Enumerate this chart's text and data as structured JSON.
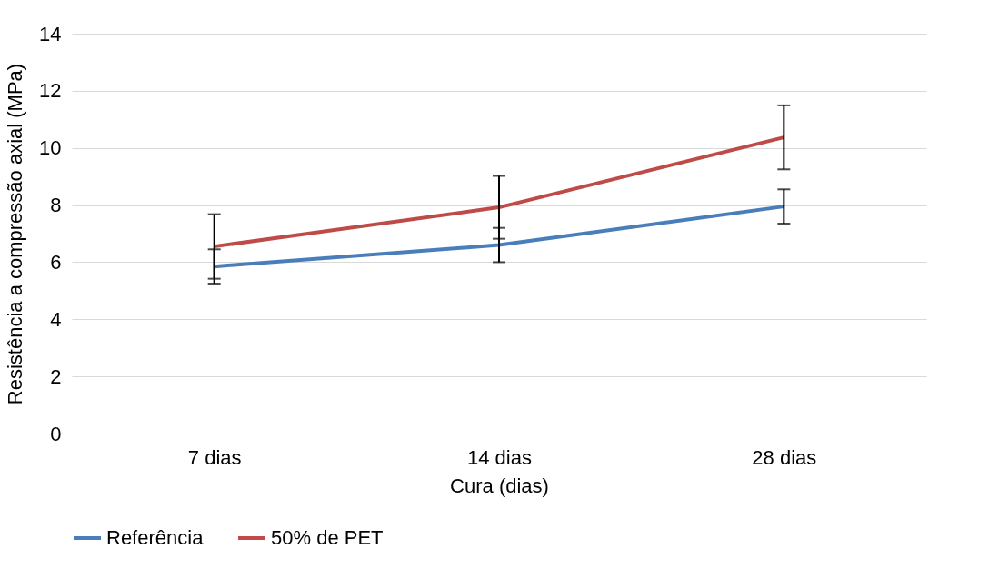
{
  "chart_data": {
    "type": "line",
    "xlabel": "Cura (dias)",
    "ylabel": "Resistência a compressão axial (MPa)",
    "categories": [
      "7 dias",
      "14 dias",
      "28 dias"
    ],
    "series": [
      {
        "name": "Referência",
        "color": "#4a7ebb",
        "values": [
          5.85,
          6.6,
          7.95
        ],
        "errors": [
          0.6,
          0.6,
          0.6
        ]
      },
      {
        "name": "50% de PET",
        "color": "#be4b48",
        "values": [
          6.55,
          7.92,
          10.37
        ],
        "errors": [
          1.13,
          1.1,
          1.12
        ]
      }
    ],
    "ylim": [
      0,
      14
    ],
    "yticks": [
      0,
      2,
      4,
      6,
      8,
      10,
      12,
      14
    ],
    "grid": "y",
    "legend": "bottom",
    "marker": "none",
    "line_style": "solid"
  }
}
